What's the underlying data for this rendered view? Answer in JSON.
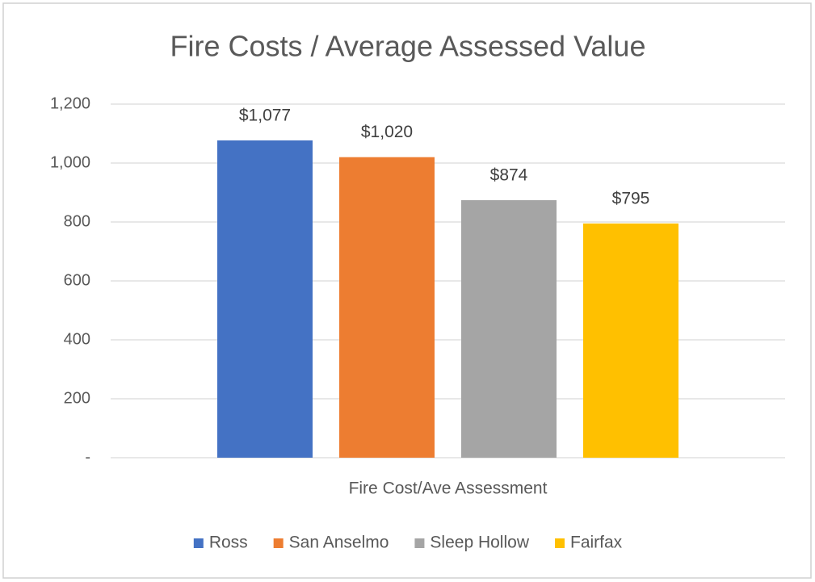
{
  "chart_data": {
    "type": "bar",
    "title": "Fire Costs / Average Assessed Value",
    "categories": [
      "Fire Cost/Ave Assessment"
    ],
    "series": [
      {
        "name": "Ross",
        "color": "#4472c4",
        "values": [
          1077
        ],
        "value_labels": [
          "$1,077"
        ]
      },
      {
        "name": "San Anselmo",
        "color": "#ed7d31",
        "values": [
          1020
        ],
        "value_labels": [
          "$1,020"
        ]
      },
      {
        "name": "Sleep Hollow",
        "color": "#a5a5a5",
        "values": [
          874
        ],
        "value_labels": [
          "$874"
        ]
      },
      {
        "name": "Fairfax",
        "color": "#ffc000",
        "values": [
          795
        ],
        "value_labels": [
          "$795"
        ]
      }
    ],
    "ylim": [
      0,
      1200
    ],
    "yticks": [
      {
        "value": 0,
        "label": "-"
      },
      200,
      400,
      600,
      800,
      {
        "value": 1000,
        "label": "1,000"
      },
      {
        "value": 1200,
        "label": "1,200"
      }
    ],
    "grid": true,
    "legend": "bottom"
  }
}
